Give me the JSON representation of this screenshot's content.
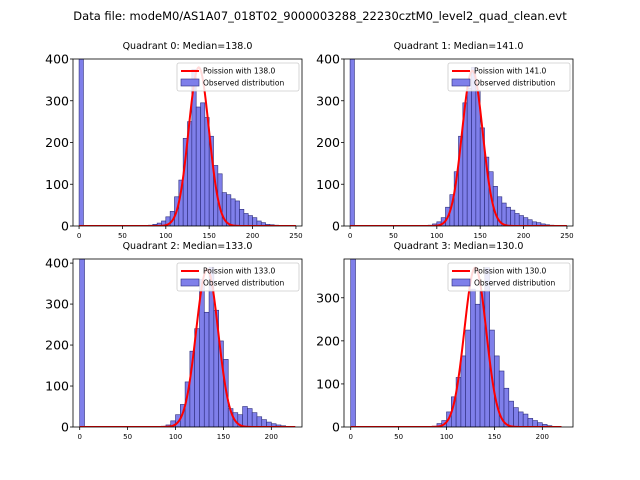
{
  "figure_title": "Data file: modeM0/AS1A07_018T02_9000003288_22230cztM0_level2_quad_clean.evt",
  "colors": {
    "bar_fill": "#7f7fea",
    "bar_edge": "#2a2a7a",
    "poisson": "#ff0000",
    "axes": "#000000"
  },
  "chart_data": [
    {
      "type": "bar",
      "title": "Quadrant 0: Median=138.0",
      "median": 138.0,
      "xlim": [
        -7,
        257
      ],
      "ylim": [
        0,
        400
      ],
      "xticks": [
        0,
        50,
        100,
        150,
        200,
        250
      ],
      "yticks": [
        0,
        100,
        200,
        300,
        400
      ],
      "bin_width": 5,
      "bin_starts": [
        0,
        5,
        10,
        15,
        20,
        25,
        30,
        35,
        40,
        45,
        50,
        55,
        60,
        65,
        70,
        75,
        80,
        85,
        90,
        95,
        100,
        105,
        110,
        115,
        120,
        125,
        130,
        135,
        140,
        145,
        150,
        155,
        160,
        165,
        170,
        175,
        180,
        185,
        190,
        195,
        200,
        205,
        210,
        215,
        220,
        225,
        230,
        235,
        240,
        245
      ],
      "counts": [
        400,
        0,
        0,
        0,
        0,
        0,
        0,
        0,
        0,
        0,
        0,
        0,
        0,
        0,
        0,
        0,
        2,
        4,
        7,
        12,
        22,
        35,
        70,
        110,
        210,
        250,
        375,
        285,
        295,
        260,
        215,
        145,
        125,
        80,
        75,
        65,
        60,
        40,
        30,
        25,
        20,
        12,
        8,
        4,
        3,
        2,
        1,
        0,
        0,
        0
      ],
      "poisson_peak": 380,
      "legend": [
        "Poission with 138.0",
        "Observed distribution"
      ]
    },
    {
      "type": "bar",
      "title": "Quadrant 1: Median=141.0",
      "median": 141.0,
      "xlim": [
        -7,
        257
      ],
      "ylim": [
        0,
        400
      ],
      "xticks": [
        0,
        50,
        100,
        150,
        200,
        250
      ],
      "yticks": [
        0,
        100,
        200,
        300,
        400
      ],
      "bin_width": 5,
      "bin_starts": [
        0,
        5,
        10,
        15,
        20,
        25,
        30,
        35,
        40,
        45,
        50,
        55,
        60,
        65,
        70,
        75,
        80,
        85,
        90,
        95,
        100,
        105,
        110,
        115,
        120,
        125,
        130,
        135,
        140,
        145,
        150,
        155,
        160,
        165,
        170,
        175,
        180,
        185,
        190,
        195,
        200,
        205,
        210,
        215,
        220,
        225,
        230,
        235,
        240,
        245
      ],
      "counts": [
        400,
        0,
        0,
        0,
        0,
        0,
        0,
        0,
        0,
        0,
        0,
        0,
        0,
        0,
        0,
        0,
        0,
        1,
        2,
        5,
        10,
        20,
        45,
        75,
        130,
        215,
        295,
        330,
        380,
        325,
        235,
        165,
        130,
        95,
        70,
        55,
        45,
        38,
        30,
        25,
        20,
        15,
        10,
        8,
        5,
        3,
        2,
        0,
        0,
        0
      ],
      "poisson_peak": 372,
      "legend": [
        "Poission with 141.0",
        "Observed distribution"
      ]
    },
    {
      "type": "bar",
      "title": "Quadrant 2: Median=133.0",
      "median": 133.0,
      "xlim": [
        -7,
        232
      ],
      "ylim": [
        0,
        410
      ],
      "xticks": [
        0,
        50,
        100,
        150,
        200
      ],
      "yticks": [
        0,
        100,
        200,
        300,
        400
      ],
      "bin_width": 5,
      "bin_starts": [
        0,
        5,
        10,
        15,
        20,
        25,
        30,
        35,
        40,
        45,
        50,
        55,
        60,
        65,
        70,
        75,
        80,
        85,
        90,
        95,
        100,
        105,
        110,
        115,
        120,
        125,
        130,
        135,
        140,
        145,
        150,
        155,
        160,
        165,
        170,
        175,
        180,
        185,
        190,
        195,
        200,
        205,
        210,
        215,
        220
      ],
      "counts": [
        410,
        0,
        0,
        0,
        0,
        0,
        0,
        0,
        0,
        0,
        0,
        0,
        0,
        0,
        0,
        0,
        0,
        2,
        5,
        15,
        30,
        55,
        110,
        185,
        240,
        360,
        280,
        390,
        285,
        210,
        165,
        45,
        35,
        30,
        50,
        45,
        35,
        25,
        18,
        12,
        8,
        5,
        3,
        1,
        0
      ],
      "poisson_peak": 385,
      "legend": [
        "Poission with 133.0",
        "Observed distribution"
      ]
    },
    {
      "type": "bar",
      "title": "Quadrant 3: Median=130.0",
      "median": 130.0,
      "xlim": [
        -7,
        232
      ],
      "ylim": [
        0,
        390
      ],
      "xticks": [
        0,
        50,
        100,
        150,
        200
      ],
      "yticks": [
        0,
        100,
        200,
        300
      ],
      "bin_width": 5,
      "bin_starts": [
        0,
        5,
        10,
        15,
        20,
        25,
        30,
        35,
        40,
        45,
        50,
        55,
        60,
        65,
        70,
        75,
        80,
        85,
        90,
        95,
        100,
        105,
        110,
        115,
        120,
        125,
        130,
        135,
        140,
        145,
        150,
        155,
        160,
        165,
        170,
        175,
        180,
        185,
        190,
        195,
        200,
        205,
        210,
        215
      ],
      "counts": [
        390,
        0,
        0,
        0,
        0,
        0,
        0,
        0,
        0,
        0,
        0,
        0,
        0,
        0,
        0,
        0,
        0,
        2,
        8,
        15,
        35,
        70,
        115,
        165,
        225,
        320,
        285,
        315,
        370,
        225,
        165,
        130,
        90,
        60,
        45,
        35,
        30,
        20,
        15,
        10,
        6,
        3,
        1,
        0
      ],
      "poisson_peak": 370,
      "legend": [
        "Poission with 130.0",
        "Observed distribution"
      ]
    }
  ]
}
